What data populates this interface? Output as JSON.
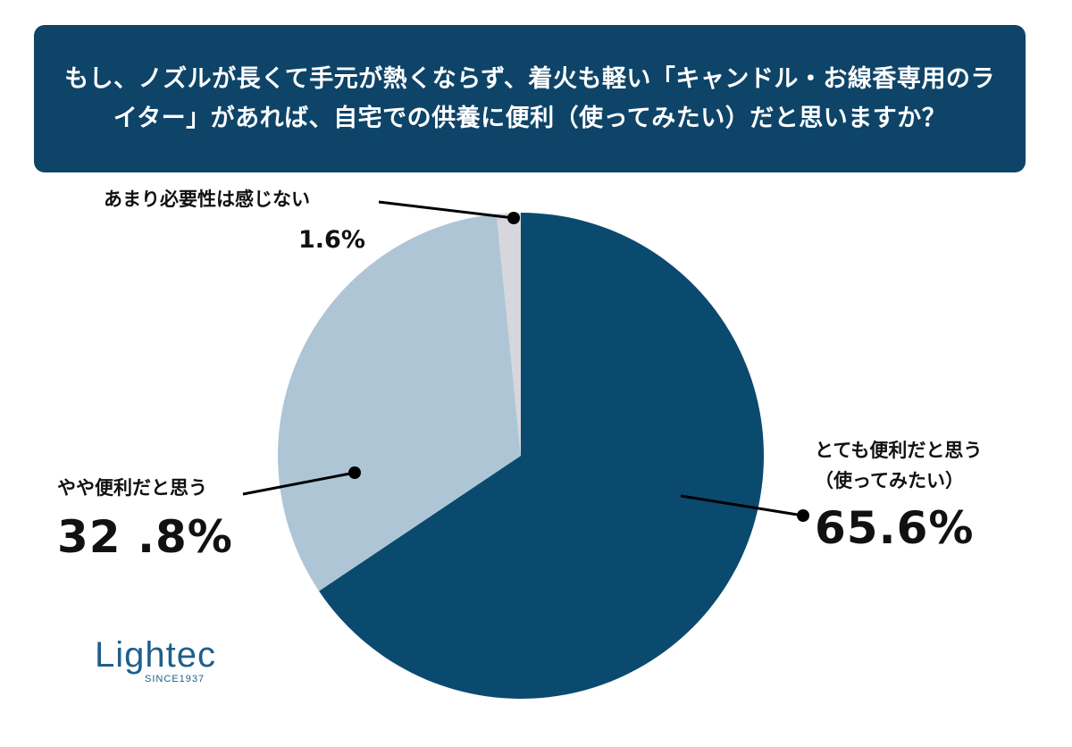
{
  "title": "もし、ノズルが長くて手元が熱くならず、着火も軽い「キャンドル・お線香専用のライター」があれば、自宅での供養に便利（使ってみたい）だと思いますか？",
  "colors": {
    "title_bg": "#0e4468",
    "slice_main": "#0b4a6f",
    "slice_mid": "#aec5d6",
    "slice_small": "#d6d6dc",
    "line": "#000000"
  },
  "chart_data": {
    "type": "pie",
    "start": "12 o'clock",
    "direction": "clockwise",
    "slices": [
      {
        "label_lines": [
          "とても便利だと思う",
          "（使ってみたい）"
        ],
        "value": 65.6,
        "display": "65.6%",
        "color": "#0b4a6f"
      },
      {
        "label_lines": [
          "やや便利だと思う"
        ],
        "value": 32.8,
        "display": "32 .8%",
        "color": "#aec5d6"
      },
      {
        "label_lines": [
          "あまり必要性は感じない"
        ],
        "value": 1.6,
        "display": "1.6%",
        "color": "#d6d6dc"
      }
    ]
  },
  "labels": {
    "s0_line1": "とても便利だと思う",
    "s0_line2": "（使ってみたい）",
    "s0_pct": "65.6%",
    "s1_line1": "やや便利だと思う",
    "s1_pct": "32 .8%",
    "s2_line1": "あまり必要性は感じない",
    "s2_pct": "1.6%"
  },
  "logo": {
    "word": "Lightec",
    "sub": "SINCE1937"
  }
}
